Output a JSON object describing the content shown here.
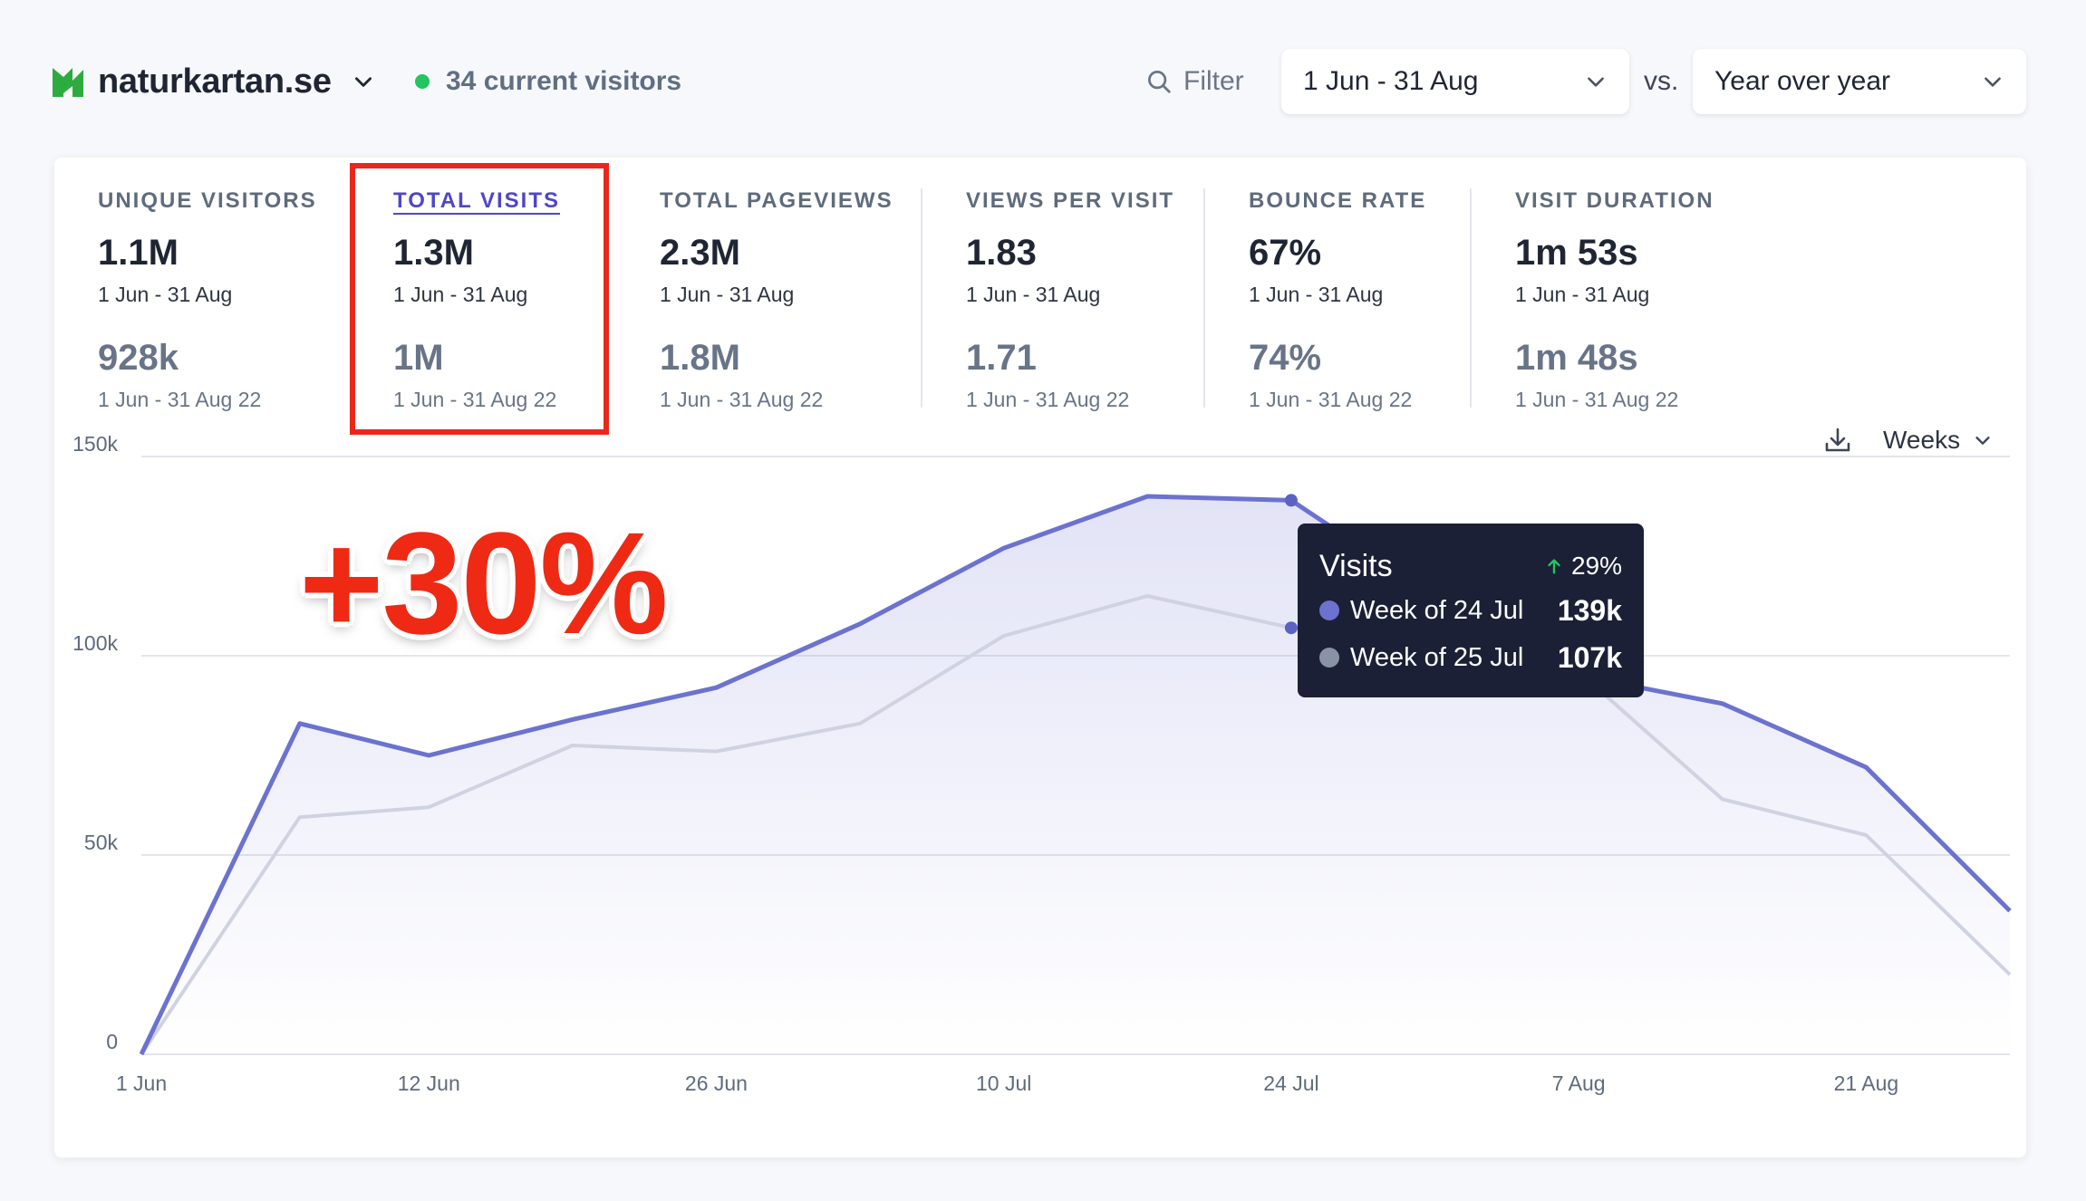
{
  "header": {
    "site_name": "naturkartan.se",
    "live_visitors": "34 current visitors",
    "filter_label": "Filter",
    "date_range": "1 Jun - 31 Aug",
    "vs_label": "vs.",
    "comparison": "Year over year",
    "colors": {
      "live_dot": "#22c55e",
      "logo": "#2eab3e"
    },
    "icons": [
      "logo-icon",
      "chevron-down-icon",
      "search-icon",
      "download-icon"
    ]
  },
  "metrics": [
    {
      "label": "UNIQUE VISITORS",
      "value": "1.1M",
      "period": "1 Jun - 31 Aug",
      "compare_value": "928k",
      "compare_period": "1 Jun - 31 Aug 22"
    },
    {
      "label": "TOTAL VISITS",
      "value": "1.3M",
      "period": "1 Jun - 31 Aug",
      "compare_value": "1M",
      "compare_period": "1 Jun - 31 Aug 22"
    },
    {
      "label": "TOTAL PAGEVIEWS",
      "value": "2.3M",
      "period": "1 Jun - 31 Aug",
      "compare_value": "1.8M",
      "compare_period": "1 Jun - 31 Aug 22"
    },
    {
      "label": "VIEWS PER VISIT",
      "value": "1.83",
      "period": "1 Jun - 31 Aug",
      "compare_value": "1.71",
      "compare_period": "1 Jun - 31 Aug 22"
    },
    {
      "label": "BOUNCE RATE",
      "value": "67%",
      "period": "1 Jun - 31 Aug",
      "compare_value": "74%",
      "compare_period": "1 Jun - 31 Aug 22"
    },
    {
      "label": "VISIT DURATION",
      "value": "1m 53s",
      "period": "1 Jun - 31 Aug",
      "compare_value": "1m 48s",
      "compare_period": "1 Jun - 31 Aug 22"
    }
  ],
  "active_metric": "TOTAL VISITS",
  "interval_label": "Weeks",
  "annotation": "+30%",
  "tooltip": {
    "title": "Visits",
    "change": "29%",
    "rows": [
      {
        "label": "Week of 24 Jul",
        "value": "139k",
        "color": "#6b72cf"
      },
      {
        "label": "Week of 25 Jul",
        "value": "107k",
        "color": "#8a93a6"
      }
    ]
  },
  "chart_data": {
    "type": "line",
    "x": [
      "1 Jun",
      "5 Jun",
      "12 Jun",
      "19 Jun",
      "26 Jun",
      "3 Jul",
      "10 Jul",
      "17 Jul",
      "24 Jul",
      "31 Jul",
      "7 Aug",
      "14 Aug",
      "21 Aug",
      "28 Aug"
    ],
    "x_tick_labels": [
      "1 Jun",
      "12 Jun",
      "26 Jun",
      "10 Jul",
      "24 Jul",
      "7 Aug",
      "21 Aug"
    ],
    "y_tick_labels": [
      "0",
      "50k",
      "100k",
      "150k"
    ],
    "ylim": [
      0,
      150000
    ],
    "series": [
      {
        "color": "#6b72cf",
        "values": [
          0,
          83000,
          75000,
          84000,
          92000,
          108000,
          127000,
          140000,
          139000,
          115000,
          95000,
          88000,
          72000,
          36000
        ]
      },
      {
        "color": "#cfd2e0",
        "values": [
          0,
          59500,
          62000,
          77500,
          76000,
          83000,
          105000,
          115000,
          107000,
          108000,
          96000,
          64000,
          55000,
          20000
        ]
      }
    ],
    "grid": true,
    "legend": "none"
  }
}
